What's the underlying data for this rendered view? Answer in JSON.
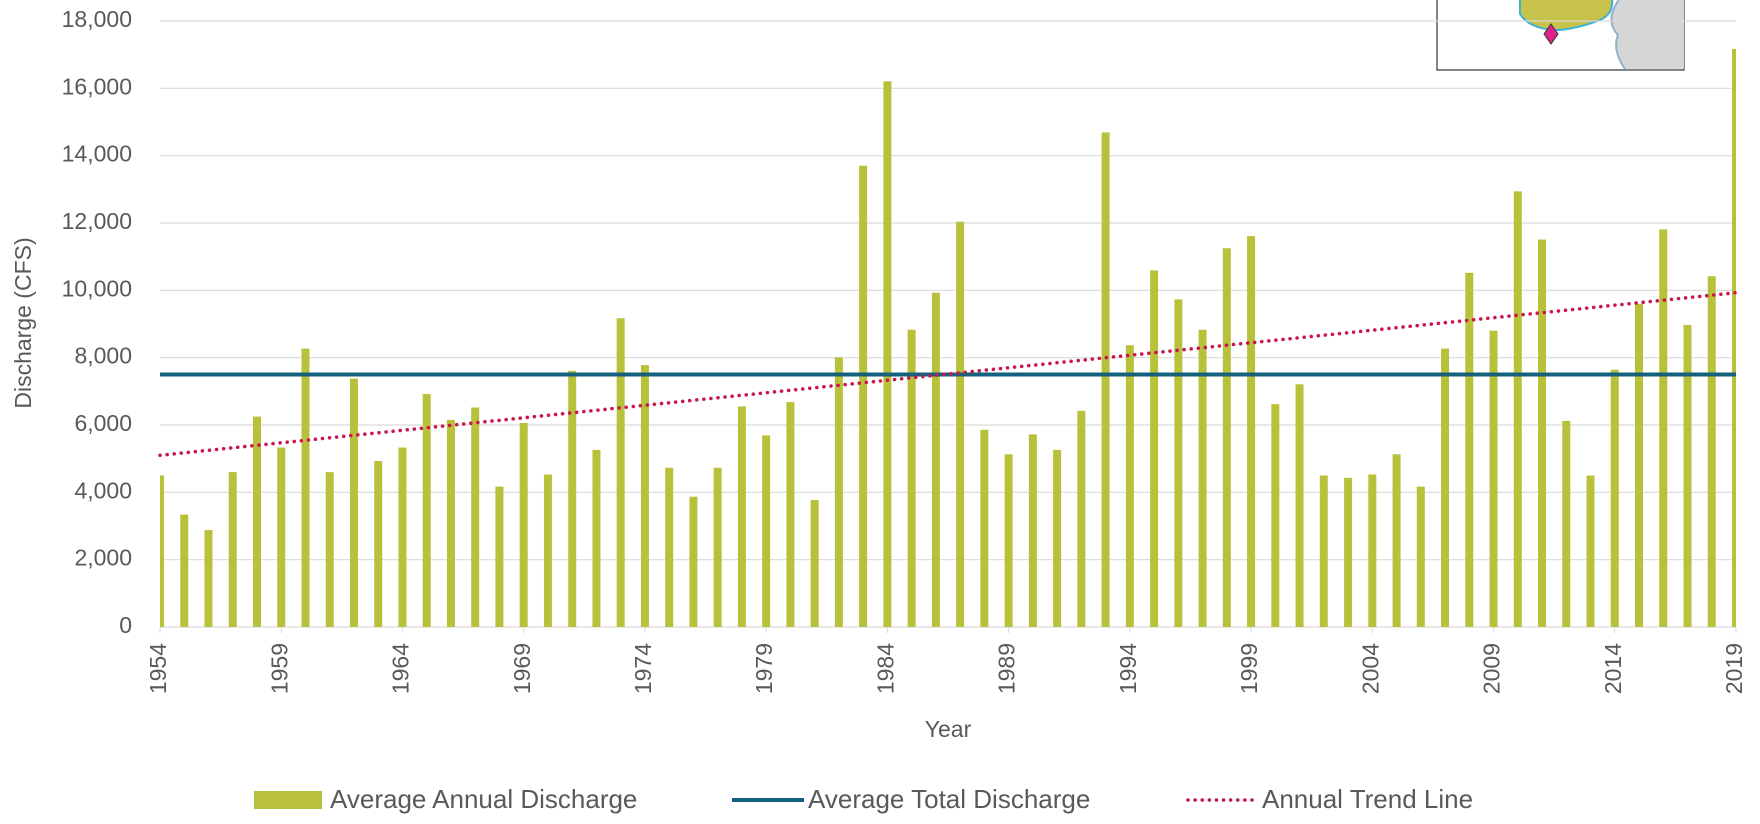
{
  "chart_data": {
    "type": "bar",
    "x_label": "Year",
    "y_label": "Discharge (CFS)",
    "x": [
      1954,
      1955,
      1956,
      1957,
      1958,
      1959,
      1960,
      1961,
      1962,
      1963,
      1964,
      1965,
      1966,
      1967,
      1968,
      1969,
      1970,
      1971,
      1972,
      1973,
      1974,
      1975,
      1976,
      1977,
      1978,
      1979,
      1980,
      1981,
      1982,
      1983,
      1984,
      1985,
      1986,
      1987,
      1988,
      1989,
      1990,
      1991,
      1992,
      1993,
      1994,
      1995,
      1996,
      1997,
      1998,
      1999,
      2000,
      2001,
      2002,
      2003,
      2004,
      2005,
      2006,
      2007,
      2008,
      2009,
      2010,
      2011,
      2012,
      2013,
      2014,
      2015,
      2016,
      2017,
      2018,
      2019
    ],
    "xlim": [
      1954,
      2019
    ],
    "xticks": [
      1954,
      1959,
      1964,
      1969,
      1974,
      1979,
      1984,
      1989,
      1994,
      1999,
      2004,
      2009,
      2014,
      2019
    ],
    "ylim": [
      0,
      18000
    ],
    "yticks": [
      0,
      {
        "value": 2000,
        "label": "2,000"
      },
      {
        "value": 4000,
        "label": "4,000"
      },
      {
        "value": 6000,
        "label": "6,000"
      },
      {
        "value": 8000,
        "label": "8,000"
      },
      {
        "value": 10000,
        "label": "10,000"
      },
      {
        "value": 12000,
        "label": "12,000"
      },
      {
        "value": 14000,
        "label": "14,000"
      },
      {
        "value": 16000,
        "label": "16,000"
      },
      {
        "value": 18000,
        "label": "18,000"
      }
    ],
    "grid": true,
    "legend": "bottom",
    "series": [
      {
        "name": "Average Annual Discharge",
        "type": "bar",
        "color": "#b9c03a",
        "values": [
          4500,
          3340,
          2880,
          4600,
          6250,
          5330,
          8270,
          4600,
          7380,
          4930,
          5330,
          6920,
          6150,
          6520,
          4170,
          6060,
          4530,
          7610,
          5260,
          9170,
          7780,
          4730,
          3870,
          4730,
          6550,
          5690,
          6680,
          3770,
          8010,
          13700,
          16210,
          8830,
          9930,
          12040,
          5860,
          5130,
          5720,
          5260,
          6420,
          14690,
          8370,
          10590,
          9730,
          8830,
          11250,
          11610,
          6620,
          7210,
          4500,
          4430,
          4530,
          5130,
          4170,
          8270,
          10520,
          8800,
          12940,
          11510,
          6120,
          4500,
          7640,
          9600,
          11810,
          8970,
          10420,
          17170
        ]
      },
      {
        "name": "Average Total Discharge",
        "type": "line",
        "style": "solid",
        "color": "#14617e",
        "x": [
          1954,
          2019
        ],
        "values": [
          7500,
          7500
        ]
      },
      {
        "name": "Annual Trend Line",
        "type": "line",
        "style": "dotted",
        "color": "#c8174f",
        "x": [
          1954,
          2019
        ],
        "values": [
          5100,
          9930
        ]
      }
    ]
  }
}
